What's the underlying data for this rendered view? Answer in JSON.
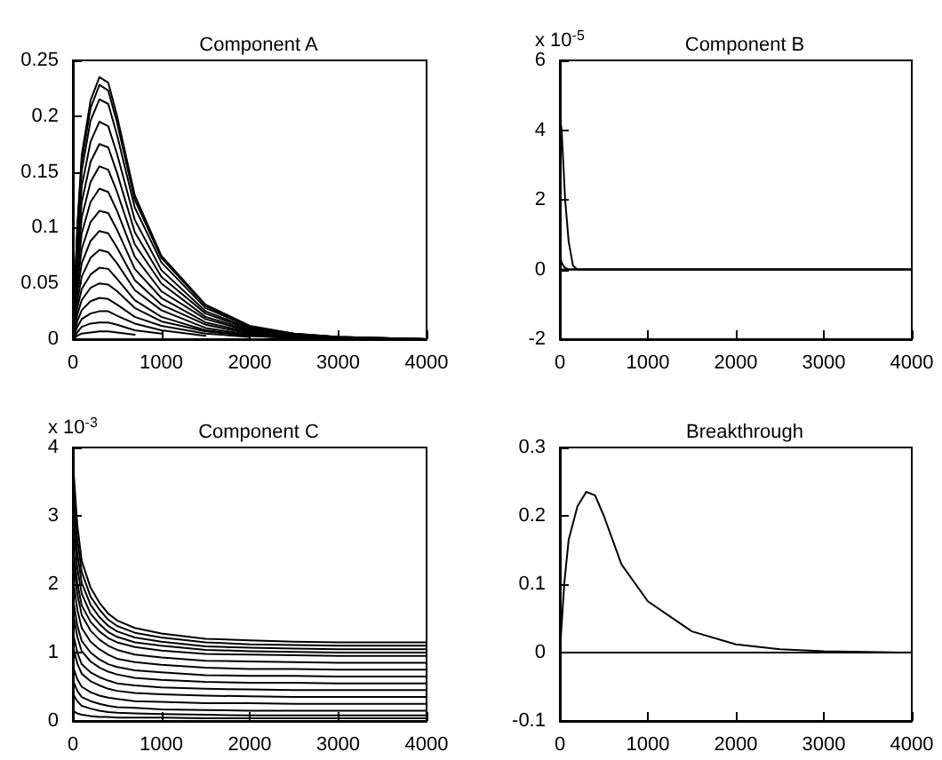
{
  "chart_data": [
    {
      "type": "line",
      "title": "Component A",
      "x": [
        0,
        50,
        100,
        200,
        300,
        400,
        500,
        700,
        1000,
        1500,
        2000,
        2500,
        3000,
        4000
      ],
      "xlim": [
        0,
        4000
      ],
      "xticks": [
        0,
        1000,
        2000,
        3000,
        4000
      ],
      "ylim": [
        0,
        0.25
      ],
      "yticks": [
        0,
        0.05,
        0.1,
        0.15,
        0.2,
        0.25
      ],
      "grid": false,
      "marker": "none",
      "line_style": "solid",
      "series": [
        {
          "color": "#000000",
          "values": [
            0,
            0.101,
            0.165,
            0.214,
            0.235,
            0.23,
            0.2,
            0.129,
            0.075,
            0.031,
            0.012,
            0.005,
            0.002,
            0
          ]
        },
        {
          "color": "#000000",
          "values": [
            0,
            0.098,
            0.16,
            0.207,
            0.228,
            0.223,
            0.194,
            0.125,
            0.073,
            0.03,
            0.011,
            0.005,
            0.002,
            0
          ]
        },
        {
          "color": "#000000",
          "values": [
            0,
            0.092,
            0.151,
            0.196,
            0.215,
            0.211,
            0.183,
            0.118,
            0.069,
            0.028,
            0.011,
            0.004,
            0.002,
            0
          ]
        },
        {
          "color": "#000000",
          "values": [
            0,
            0.084,
            0.137,
            0.177,
            0.195,
            0.191,
            0.166,
            0.107,
            0.062,
            0.025,
            0.01,
            0.004,
            0.002,
            0
          ]
        },
        {
          "color": "#000000",
          "values": [
            0,
            0.075,
            0.123,
            0.159,
            0.175,
            0.172,
            0.149,
            0.096,
            0.056,
            0.023,
            0.009,
            0.004,
            0.001,
            0
          ]
        },
        {
          "color": "#000000",
          "values": [
            0,
            0.067,
            0.109,
            0.141,
            0.155,
            0.152,
            0.132,
            0.085,
            0.05,
            0.02,
            0.008,
            0.003,
            0.001,
            0
          ]
        },
        {
          "color": "#000000",
          "values": [
            0,
            0.058,
            0.095,
            0.123,
            0.135,
            0.132,
            0.115,
            0.074,
            0.043,
            0.018,
            0.007,
            0.003,
            0.001,
            0
          ]
        },
        {
          "color": "#000000",
          "values": [
            0,
            0.049,
            0.081,
            0.105,
            0.115,
            0.113,
            0.098,
            0.063,
            0.037,
            0.015,
            0.006,
            0.002,
            0.001,
            0
          ]
        },
        {
          "color": "#000000",
          "values": [
            0,
            0.042,
            0.068,
            0.088,
            0.097,
            0.095,
            0.082,
            0.053,
            0.031,
            0.013,
            0.005,
            0.002,
            0.001,
            0
          ]
        },
        {
          "color": "#000000",
          "values": [
            0,
            0.034,
            0.056,
            0.073,
            0.08,
            0.078,
            0.068,
            0.044,
            0.026,
            0.01,
            0.004,
            0.002,
            0.001,
            0
          ]
        },
        {
          "color": "#000000",
          "x": [
            0,
            50,
            100,
            200,
            300,
            400,
            500,
            700,
            1000,
            1500,
            2000,
            2500,
            3000
          ],
          "values": [
            0,
            0.028,
            0.045,
            0.058,
            0.064,
            0.063,
            0.054,
            0.035,
            0.02,
            0.008,
            0.003,
            0.001,
            0.001
          ]
        },
        {
          "color": "#000000",
          "x": [
            0,
            50,
            100,
            200,
            300,
            400,
            500,
            700,
            1000,
            1500,
            2000,
            2500
          ],
          "values": [
            0,
            0.022,
            0.035,
            0.046,
            0.05,
            0.049,
            0.043,
            0.028,
            0.016,
            0.007,
            0.003,
            0.001
          ]
        },
        {
          "color": "#000000",
          "x": [
            0,
            50,
            100,
            200,
            300,
            400,
            500,
            700,
            1000,
            1500,
            2000
          ],
          "values": [
            0,
            0.016,
            0.026,
            0.034,
            0.037,
            0.036,
            0.031,
            0.02,
            0.012,
            0.005,
            0.002
          ]
        },
        {
          "color": "#000000",
          "x": [
            0,
            50,
            100,
            200,
            300,
            400,
            500,
            700,
            1000,
            1500
          ],
          "values": [
            0,
            0.011,
            0.018,
            0.023,
            0.025,
            0.025,
            0.021,
            0.014,
            0.008,
            0.003
          ]
        },
        {
          "color": "#000000",
          "x": [
            0,
            50,
            100,
            200,
            300,
            400,
            500,
            700,
            1000
          ],
          "values": [
            0,
            0.006,
            0.011,
            0.014,
            0.015,
            0.015,
            0.013,
            0.008,
            0.005
          ]
        },
        {
          "color": "#000000",
          "x": [
            0,
            50,
            100,
            200,
            300,
            400,
            500,
            700
          ],
          "values": [
            0,
            0.003,
            0.005,
            0.006,
            0.007,
            0.007,
            0.006,
            0.004
          ]
        }
      ]
    },
    {
      "type": "line",
      "title": "Component B",
      "annotations": [
        "x 10$^{-5}$"
      ],
      "x": [
        0,
        10,
        20,
        40,
        60,
        100,
        150,
        200,
        4000
      ],
      "xlim": [
        0,
        4000
      ],
      "xticks": [
        0,
        1000,
        2000,
        3000,
        4000
      ],
      "ylim": [
        -2,
        6
      ],
      "yticks": [
        -2,
        0,
        2,
        4,
        6
      ],
      "grid": false,
      "marker": "none",
      "line_style": "solid",
      "series": [
        {
          "color": "#000000",
          "x": [
            0,
            4000
          ],
          "values": [
            0,
            0
          ]
        },
        {
          "color": "#000000",
          "values": [
            0,
            4.2,
            4.0,
            3.0,
            2.0,
            0.8,
            0.1,
            0,
            0
          ]
        },
        {
          "color": "#000000",
          "values": [
            0,
            0.3,
            0.2,
            0.1,
            0.05,
            0,
            0,
            0,
            0
          ]
        }
      ]
    },
    {
      "type": "line",
      "title": "Component C",
      "annotations": [
        "x 10$^{-3}$"
      ],
      "x": [
        0,
        50,
        100,
        200,
        300,
        400,
        500,
        700,
        1000,
        1500,
        2000,
        2500,
        3000,
        4000
      ],
      "xlim": [
        0,
        4000
      ],
      "xticks": [
        0,
        1000,
        2000,
        3000,
        4000
      ],
      "ylim": [
        0,
        4
      ],
      "yticks": [
        0,
        1,
        2,
        3,
        4
      ],
      "grid": false,
      "marker": "none",
      "line_style": "solid",
      "series": [
        {
          "color": "#000000",
          "values": [
            3.8,
            2.87,
            2.34,
            1.95,
            1.73,
            1.57,
            1.47,
            1.36,
            1.28,
            1.2,
            1.18,
            1.16,
            1.15,
            1.15
          ]
        },
        {
          "color": "#000000",
          "values": [
            3.5,
            2.66,
            2.18,
            1.82,
            1.63,
            1.48,
            1.39,
            1.29,
            1.22,
            1.15,
            1.12,
            1.11,
            1.1,
            1.1
          ]
        },
        {
          "color": "#000000",
          "values": [
            3.2,
            2.45,
            2.02,
            1.7,
            1.52,
            1.39,
            1.31,
            1.22,
            1.16,
            1.09,
            1.07,
            1.06,
            1.05,
            1.05
          ]
        },
        {
          "color": "#000000",
          "values": [
            2.9,
            2.24,
            1.86,
            1.57,
            1.42,
            1.3,
            1.23,
            1.15,
            1.1,
            1.04,
            1.02,
            1.01,
            1.0,
            1.0
          ]
        },
        {
          "color": "#000000",
          "values": [
            2.6,
            2.02,
            1.69,
            1.45,
            1.31,
            1.21,
            1.15,
            1.08,
            1.03,
            0.98,
            0.97,
            0.96,
            0.95,
            0.95
          ]
        },
        {
          "color": "#000000",
          "values": [
            2.4,
            1.86,
            1.55,
            1.32,
            1.19,
            1.1,
            1.04,
            0.97,
            0.93,
            0.88,
            0.87,
            0.86,
            0.85,
            0.85
          ]
        },
        {
          "color": "#000000",
          "values": [
            2.1,
            1.63,
            1.36,
            1.16,
            1.05,
            0.97,
            0.91,
            0.86,
            0.82,
            0.78,
            0.76,
            0.76,
            0.75,
            0.75
          ]
        },
        {
          "color": "#000000",
          "values": [
            1.8,
            1.4,
            1.17,
            1.0,
            0.9,
            0.83,
            0.79,
            0.74,
            0.71,
            0.67,
            0.66,
            0.66,
            0.65,
            0.65
          ]
        },
        {
          "color": "#000000",
          "values": [
            1.6,
            1.23,
            1.02,
            0.87,
            0.78,
            0.72,
            0.68,
            0.63,
            0.6,
            0.57,
            0.56,
            0.56,
            0.55,
            0.55
          ]
        },
        {
          "color": "#000000",
          "values": [
            1.3,
            1.0,
            0.83,
            0.71,
            0.64,
            0.59,
            0.55,
            0.52,
            0.49,
            0.47,
            0.46,
            0.45,
            0.45,
            0.45
          ]
        },
        {
          "color": "#000000",
          "values": [
            1.1,
            0.84,
            0.69,
            0.58,
            0.52,
            0.47,
            0.44,
            0.41,
            0.39,
            0.37,
            0.36,
            0.35,
            0.35,
            0.35
          ]
        },
        {
          "color": "#000000",
          "values": [
            0.8,
            0.61,
            0.5,
            0.42,
            0.37,
            0.34,
            0.32,
            0.29,
            0.28,
            0.26,
            0.26,
            0.25,
            0.25,
            0.25
          ]
        },
        {
          "color": "#000000",
          "values": [
            0.6,
            0.44,
            0.35,
            0.29,
            0.25,
            0.22,
            0.2,
            0.19,
            0.17,
            0.16,
            0.15,
            0.15,
            0.15,
            0.15
          ]
        },
        {
          "color": "#000000",
          "values": [
            0.4,
            0.29,
            0.22,
            0.18,
            0.15,
            0.13,
            0.12,
            0.11,
            0.1,
            0.09,
            0.08,
            0.08,
            0.08,
            0.08
          ]
        },
        {
          "color": "#000000",
          "values": [
            0.15,
            0.11,
            0.09,
            0.07,
            0.06,
            0.06,
            0.05,
            0.05,
            0.05,
            0.04,
            0.04,
            0.04,
            0.04,
            0.04
          ]
        }
      ]
    },
    {
      "type": "line",
      "title": "Breakthrough",
      "x": [
        0,
        50,
        100,
        200,
        300,
        400,
        500,
        700,
        1000,
        1500,
        2000,
        2500,
        3000,
        4000
      ],
      "xlim": [
        0,
        4000
      ],
      "xticks": [
        0,
        1000,
        2000,
        3000,
        4000
      ],
      "ylim": [
        -0.1,
        0.3
      ],
      "yticks": [
        -0.1,
        0,
        0.1,
        0.2,
        0.3
      ],
      "grid": false,
      "marker": "none",
      "line_style": "solid",
      "series": [
        {
          "color": "#000000",
          "x": [
            0,
            4000
          ],
          "values": [
            0,
            0
          ]
        },
        {
          "color": "#000000",
          "values": [
            0,
            0.101,
            0.165,
            0.214,
            0.235,
            0.23,
            0.2,
            0.129,
            0.075,
            0.031,
            0.012,
            0.005,
            0.002,
            0
          ]
        }
      ]
    }
  ]
}
